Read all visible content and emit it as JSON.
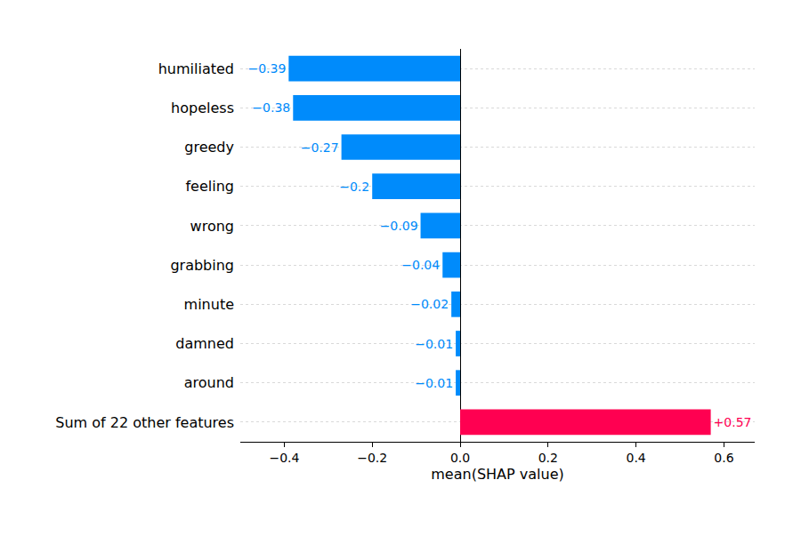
{
  "chart_data": {
    "type": "bar",
    "orientation": "horizontal",
    "x_label": "mean(SHAP value)",
    "categories": [
      "humiliated",
      "hopeless",
      "greedy",
      "feeling",
      "wrong",
      "grabbing",
      "minute",
      "damned",
      "around",
      "Sum of 22 other features"
    ],
    "values": [
      -0.39,
      -0.38,
      -0.27,
      -0.2,
      -0.09,
      -0.04,
      -0.02,
      -0.01,
      -0.01,
      0.57
    ],
    "value_labels": [
      "−0.39",
      "−0.38",
      "−0.27",
      "−0.2",
      "−0.09",
      "−0.04",
      "−0.02",
      "−0.01",
      "−0.01",
      "+0.57"
    ],
    "colors": [
      "#008bfb",
      "#008bfb",
      "#008bfb",
      "#008bfb",
      "#008bfb",
      "#008bfb",
      "#008bfb",
      "#008bfb",
      "#008bfb",
      "#ff0051"
    ],
    "data_labels": true,
    "xlim": [
      -0.5,
      0.67
    ],
    "xticks": [
      {
        "value": -0.4,
        "label": "−0.4"
      },
      {
        "value": -0.2,
        "label": "−0.2"
      },
      {
        "value": 0,
        "label": "0.0"
      },
      0.2,
      0.4,
      0.6
    ],
    "grid": true
  }
}
